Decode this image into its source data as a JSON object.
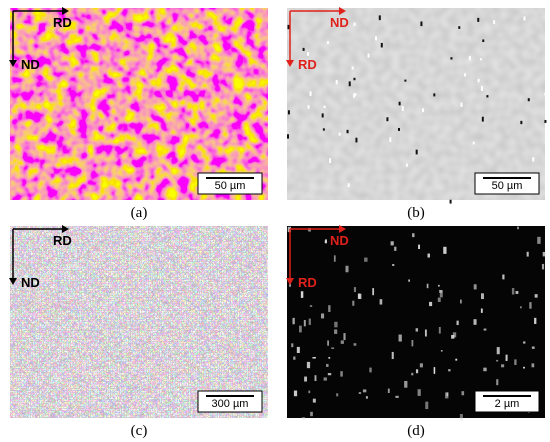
{
  "panels": [
    {
      "caption": "(a)",
      "scale_bar": "50 µm",
      "labels": [
        "RD",
        "ND"
      ]
    },
    {
      "caption": "(b)",
      "scale_bar": "50 µm",
      "labels": [
        "ND",
        "RD"
      ]
    },
    {
      "caption": "(c)",
      "scale_bar": "300 µm",
      "labels": [
        "RD",
        "ND"
      ]
    },
    {
      "caption": "(d)",
      "scale_bar": "2 µm",
      "labels": [
        "ND",
        "RD"
      ]
    }
  ]
}
